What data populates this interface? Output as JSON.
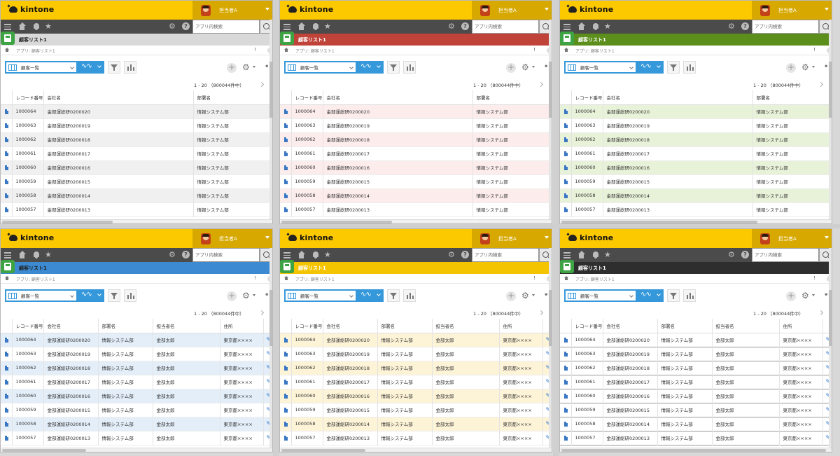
{
  "shared": {
    "logo_text": "kintone",
    "user_name": "担当者A",
    "search_placeholder": "アプリ内検索",
    "app_title": "顧客リスト1",
    "breadcrumb": "アプリ: 顧客リスト1",
    "view_name": "顧客一覧",
    "pager_text": "1 - 20 （800044件中）",
    "help_glyph": "?",
    "info_glyph": "i",
    "pin_glyph": "!",
    "add_glyph": "+",
    "more_glyph": "•••",
    "gear_glyph": "⚙",
    "star_glyph": "★",
    "pen_glyph": "✎",
    "graph_glyph": "∿∿"
  },
  "columns": {
    "record_no": "レコード番号",
    "company": "会社名",
    "department": "部署名",
    "person": "担当者名",
    "address": "住所"
  },
  "rows": [
    {
      "record_no": "1000064",
      "company": "金部運総研0200020",
      "department": "情報システム部",
      "person": "金部太郎",
      "address": "東京都××××"
    },
    {
      "record_no": "1000063",
      "company": "金部運総研0200019",
      "department": "情報システム部",
      "person": "金部太郎",
      "address": "東京都××××"
    },
    {
      "record_no": "1000062",
      "company": "金部運総研0200018",
      "department": "情報システム部",
      "person": "金部太郎",
      "address": "東京都××××"
    },
    {
      "record_no": "1000061",
      "company": "金部運総研0200017",
      "department": "情報システム部",
      "person": "金部太郎",
      "address": "東京都××××"
    },
    {
      "record_no": "1000060",
      "company": "金部運総研0200016",
      "department": "情報システム部",
      "person": "金部太郎",
      "address": "東京都××××"
    },
    {
      "record_no": "1000059",
      "company": "金部運総研0200015",
      "department": "情報システム部",
      "person": "金部太郎",
      "address": "東京都××××"
    },
    {
      "record_no": "1000058",
      "company": "金部運総研0200014",
      "department": "情報システム部",
      "person": "金部太郎",
      "address": "東京都××××"
    },
    {
      "record_no": "1000057",
      "company": "金部運総研0200013",
      "department": "情報システム部",
      "person": "金部太郎",
      "address": "東京都××××"
    }
  ],
  "panels": [
    {
      "theme": "gray",
      "app_bar_color": "#d9d9d9",
      "app_title_color": "#222222",
      "stripe_color": "#f0f0f0"
    },
    {
      "theme": "red",
      "app_bar_color": "#c0433a",
      "app_title_color": "#ffffff",
      "stripe_color": "#fdecec"
    },
    {
      "theme": "green",
      "app_bar_color": "#5b8e1b",
      "app_title_color": "#ffffff",
      "stripe_color": "#e8f2d8"
    },
    {
      "theme": "blue",
      "app_bar_color": "#3b8ad2",
      "app_title_color": "#222222",
      "stripe_color": "#e3eef9"
    },
    {
      "theme": "yellow",
      "app_bar_color": "#f5c400",
      "app_title_color": "#ffffff",
      "stripe_color": "#fdf3d7"
    },
    {
      "theme": "black",
      "app_bar_color": "#2e2e2e",
      "app_title_color": "#ffffff",
      "stripe_color": "#ffffff"
    }
  ],
  "colors": {
    "header_yellow": "#fcc800",
    "nav_dark": "#4b4b4b",
    "accent_blue": "#3498db"
  }
}
